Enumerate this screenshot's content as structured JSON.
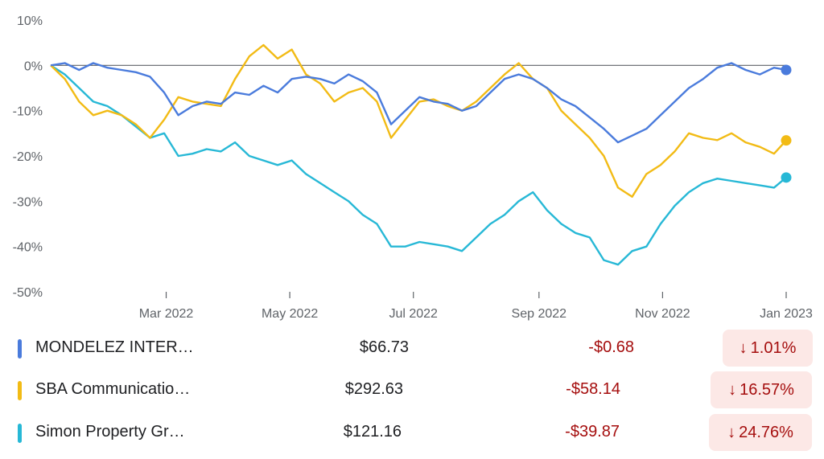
{
  "chart_data": {
    "type": "line",
    "title": "",
    "xlabel": "",
    "ylabel": "",
    "y_unit": "%",
    "ylim": [
      -50,
      10
    ],
    "y_ticks": [
      "10%",
      "0%",
      "-10%",
      "-20%",
      "-30%",
      "-40%",
      "-50%"
    ],
    "y_tick_values": [
      10,
      0,
      -10,
      -20,
      -30,
      -40,
      -50
    ],
    "x_ticks": [
      {
        "label": "Mar 2022",
        "date": "2022-03-01"
      },
      {
        "label": "May 2022",
        "date": "2022-05-01"
      },
      {
        "label": "Jul 2022",
        "date": "2022-07-01"
      },
      {
        "label": "Sep 2022",
        "date": "2022-09-01"
      },
      {
        "label": "Nov 2022",
        "date": "2022-11-01"
      },
      {
        "label": "Jan 2023",
        "date": "2023-01-01"
      }
    ],
    "x_range": [
      "2022-01-03",
      "2023-01-01"
    ],
    "baseline": 0,
    "grid": false,
    "series": [
      {
        "name": "MONDELEZ INTER…",
        "color": "#4a7bdc",
        "points": [
          [
            "2022-01-03",
            0
          ],
          [
            "2022-01-10",
            0.5
          ],
          [
            "2022-01-17",
            -1
          ],
          [
            "2022-01-24",
            0.5
          ],
          [
            "2022-01-31",
            -0.5
          ],
          [
            "2022-02-07",
            -1
          ],
          [
            "2022-02-14",
            -1.5
          ],
          [
            "2022-02-21",
            -2.5
          ],
          [
            "2022-02-28",
            -6
          ],
          [
            "2022-03-07",
            -11
          ],
          [
            "2022-03-14",
            -9
          ],
          [
            "2022-03-21",
            -8
          ],
          [
            "2022-03-28",
            -8.5
          ],
          [
            "2022-04-04",
            -6
          ],
          [
            "2022-04-11",
            -6.5
          ],
          [
            "2022-04-18",
            -4.5
          ],
          [
            "2022-04-25",
            -6
          ],
          [
            "2022-05-02",
            -3
          ],
          [
            "2022-05-09",
            -2.5
          ],
          [
            "2022-05-16",
            -3
          ],
          [
            "2022-05-23",
            -4
          ],
          [
            "2022-05-30",
            -2
          ],
          [
            "2022-06-06",
            -3.5
          ],
          [
            "2022-06-13",
            -6
          ],
          [
            "2022-06-20",
            -13
          ],
          [
            "2022-06-27",
            -10
          ],
          [
            "2022-07-04",
            -7
          ],
          [
            "2022-07-11",
            -8
          ],
          [
            "2022-07-18",
            -8.5
          ],
          [
            "2022-07-25",
            -10
          ],
          [
            "2022-08-01",
            -9
          ],
          [
            "2022-08-08",
            -6
          ],
          [
            "2022-08-15",
            -3
          ],
          [
            "2022-08-22",
            -2
          ],
          [
            "2022-08-29",
            -3
          ],
          [
            "2022-09-05",
            -5
          ],
          [
            "2022-09-12",
            -7.5
          ],
          [
            "2022-09-19",
            -9
          ],
          [
            "2022-09-26",
            -11.5
          ],
          [
            "2022-10-03",
            -14
          ],
          [
            "2022-10-10",
            -17
          ],
          [
            "2022-10-17",
            -15.5
          ],
          [
            "2022-10-24",
            -14
          ],
          [
            "2022-10-31",
            -11
          ],
          [
            "2022-11-07",
            -8
          ],
          [
            "2022-11-14",
            -5
          ],
          [
            "2022-11-21",
            -3
          ],
          [
            "2022-11-28",
            -0.5
          ],
          [
            "2022-12-05",
            0.5
          ],
          [
            "2022-12-12",
            -1
          ],
          [
            "2022-12-19",
            -2
          ],
          [
            "2022-12-26",
            -0.5
          ],
          [
            "2023-01-01",
            -1.01
          ]
        ]
      },
      {
        "name": "SBA Communicatio…",
        "color": "#f2bb15",
        "points": [
          [
            "2022-01-03",
            0
          ],
          [
            "2022-01-10",
            -3
          ],
          [
            "2022-01-17",
            -8
          ],
          [
            "2022-01-24",
            -11
          ],
          [
            "2022-01-31",
            -10
          ],
          [
            "2022-02-07",
            -11
          ],
          [
            "2022-02-14",
            -13
          ],
          [
            "2022-02-21",
            -16
          ],
          [
            "2022-02-28",
            -12
          ],
          [
            "2022-03-07",
            -7
          ],
          [
            "2022-03-14",
            -8
          ],
          [
            "2022-03-21",
            -8.5
          ],
          [
            "2022-03-28",
            -9
          ],
          [
            "2022-04-04",
            -3
          ],
          [
            "2022-04-11",
            2
          ],
          [
            "2022-04-18",
            4.5
          ],
          [
            "2022-04-25",
            1.5
          ],
          [
            "2022-05-02",
            3.5
          ],
          [
            "2022-05-09",
            -2
          ],
          [
            "2022-05-16",
            -4
          ],
          [
            "2022-05-23",
            -8
          ],
          [
            "2022-05-30",
            -6
          ],
          [
            "2022-06-06",
            -5
          ],
          [
            "2022-06-13",
            -8
          ],
          [
            "2022-06-20",
            -16
          ],
          [
            "2022-06-27",
            -12
          ],
          [
            "2022-07-04",
            -8
          ],
          [
            "2022-07-11",
            -7.5
          ],
          [
            "2022-07-18",
            -9
          ],
          [
            "2022-07-25",
            -10
          ],
          [
            "2022-08-01",
            -8
          ],
          [
            "2022-08-08",
            -5
          ],
          [
            "2022-08-15",
            -2
          ],
          [
            "2022-08-22",
            0.5
          ],
          [
            "2022-08-29",
            -3
          ],
          [
            "2022-09-05",
            -5
          ],
          [
            "2022-09-12",
            -10
          ],
          [
            "2022-09-19",
            -13
          ],
          [
            "2022-09-26",
            -16
          ],
          [
            "2022-10-03",
            -20
          ],
          [
            "2022-10-10",
            -27
          ],
          [
            "2022-10-17",
            -29
          ],
          [
            "2022-10-24",
            -24
          ],
          [
            "2022-10-31",
            -22
          ],
          [
            "2022-11-07",
            -19
          ],
          [
            "2022-11-14",
            -15
          ],
          [
            "2022-11-21",
            -16
          ],
          [
            "2022-11-28",
            -16.5
          ],
          [
            "2022-12-05",
            -15
          ],
          [
            "2022-12-12",
            -17
          ],
          [
            "2022-12-19",
            -18
          ],
          [
            "2022-12-26",
            -19.5
          ],
          [
            "2023-01-01",
            -16.57
          ]
        ]
      },
      {
        "name": "Simon Property Gr…",
        "color": "#27b8d6",
        "points": [
          [
            "2022-01-03",
            0
          ],
          [
            "2022-01-10",
            -2
          ],
          [
            "2022-01-17",
            -5
          ],
          [
            "2022-01-24",
            -8
          ],
          [
            "2022-01-31",
            -9
          ],
          [
            "2022-02-07",
            -11
          ],
          [
            "2022-02-14",
            -13.5
          ],
          [
            "2022-02-21",
            -16
          ],
          [
            "2022-02-28",
            -15
          ],
          [
            "2022-03-07",
            -20
          ],
          [
            "2022-03-14",
            -19.5
          ],
          [
            "2022-03-21",
            -18.5
          ],
          [
            "2022-03-28",
            -19
          ],
          [
            "2022-04-04",
            -17
          ],
          [
            "2022-04-11",
            -20
          ],
          [
            "2022-04-18",
            -21
          ],
          [
            "2022-04-25",
            -22
          ],
          [
            "2022-05-02",
            -21
          ],
          [
            "2022-05-09",
            -24
          ],
          [
            "2022-05-16",
            -26
          ],
          [
            "2022-05-23",
            -28
          ],
          [
            "2022-05-30",
            -30
          ],
          [
            "2022-06-06",
            -33
          ],
          [
            "2022-06-13",
            -35
          ],
          [
            "2022-06-20",
            -40
          ],
          [
            "2022-06-27",
            -40
          ],
          [
            "2022-07-04",
            -39
          ],
          [
            "2022-07-11",
            -39.5
          ],
          [
            "2022-07-18",
            -40
          ],
          [
            "2022-07-25",
            -41
          ],
          [
            "2022-08-01",
            -38
          ],
          [
            "2022-08-08",
            -35
          ],
          [
            "2022-08-15",
            -33
          ],
          [
            "2022-08-22",
            -30
          ],
          [
            "2022-08-29",
            -28
          ],
          [
            "2022-09-05",
            -32
          ],
          [
            "2022-09-12",
            -35
          ],
          [
            "2022-09-19",
            -37
          ],
          [
            "2022-09-26",
            -38
          ],
          [
            "2022-10-03",
            -43
          ],
          [
            "2022-10-10",
            -44
          ],
          [
            "2022-10-17",
            -41
          ],
          [
            "2022-10-24",
            -40
          ],
          [
            "2022-10-31",
            -35
          ],
          [
            "2022-11-07",
            -31
          ],
          [
            "2022-11-14",
            -28
          ],
          [
            "2022-11-21",
            -26
          ],
          [
            "2022-11-28",
            -25
          ],
          [
            "2022-12-05",
            -25.5
          ],
          [
            "2022-12-12",
            -26
          ],
          [
            "2022-12-19",
            -26.5
          ],
          [
            "2022-12-26",
            -27
          ],
          [
            "2023-01-01",
            -24.76
          ]
        ]
      }
    ]
  },
  "legend": [
    {
      "name": "MONDELEZ INTER…",
      "color": "#4a7bdc",
      "price": "$66.73",
      "change": "-$0.68",
      "arrow": "↓",
      "percent": "1.01%"
    },
    {
      "name": "SBA Communicatio…",
      "color": "#f2bb15",
      "price": "$292.63",
      "change": "-$58.14",
      "arrow": "↓",
      "percent": "16.57%"
    },
    {
      "name": "Simon Property Gr…",
      "color": "#27b8d6",
      "price": "$121.16",
      "change": "-$39.87",
      "arrow": "↓",
      "percent": "24.76%"
    }
  ]
}
